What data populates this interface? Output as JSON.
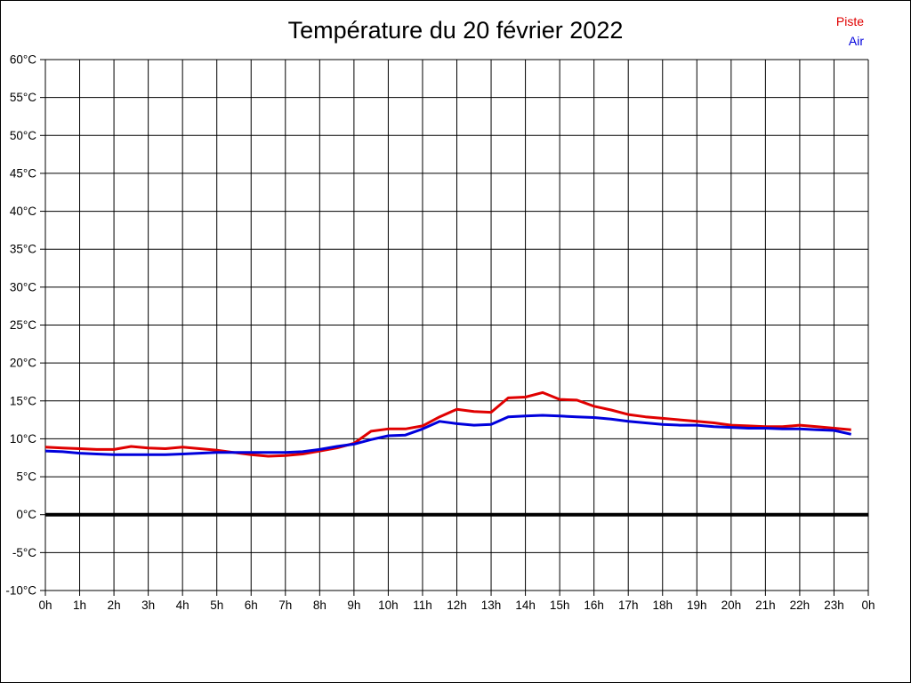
{
  "title": "Température du 20 février 2022",
  "legend": {
    "items": [
      {
        "label": "Piste",
        "color": "#e00000"
      },
      {
        "label": "Air",
        "color": "#0000dc"
      }
    ]
  },
  "chart_data": {
    "type": "line",
    "title": "Température du 20 février 2022",
    "xlabel": "",
    "ylabel": "",
    "ylim": [
      -10,
      60
    ],
    "y_tick_step": 5,
    "y_tick_suffix": "°C",
    "xlim_hours": [
      0,
      24
    ],
    "x_tick_hours": [
      0,
      1,
      2,
      3,
      4,
      5,
      6,
      7,
      8,
      9,
      10,
      11,
      12,
      13,
      14,
      15,
      16,
      17,
      18,
      19,
      20,
      21,
      22,
      23,
      24
    ],
    "x_tick_labels": [
      "0h",
      "1h",
      "2h",
      "3h",
      "4h",
      "5h",
      "6h",
      "7h",
      "8h",
      "9h",
      "10h",
      "11h",
      "12h",
      "13h",
      "14h",
      "15h",
      "16h",
      "17h",
      "18h",
      "19h",
      "20h",
      "21h",
      "22h",
      "23h",
      "0h"
    ],
    "grid": true,
    "zero_line": {
      "value": 0,
      "color": "#000000",
      "width": 4
    },
    "legend_position": "top-right",
    "x": [
      0,
      0.5,
      1,
      1.5,
      2,
      2.5,
      3,
      3.5,
      4,
      4.5,
      5,
      5.5,
      6,
      6.5,
      7,
      7.5,
      8,
      8.5,
      9,
      9.5,
      10,
      10.5,
      11,
      11.5,
      12,
      12.5,
      13,
      13.5,
      14,
      14.5,
      15,
      15.5,
      16,
      16.5,
      17,
      17.5,
      18,
      18.5,
      19,
      19.5,
      20,
      20.5,
      21,
      21.5,
      22,
      22.5,
      23,
      23.5
    ],
    "series": [
      {
        "name": "Piste",
        "color": "#e00000",
        "values": [
          8.9,
          8.8,
          8.7,
          8.6,
          8.6,
          9.0,
          8.8,
          8.7,
          8.9,
          8.7,
          8.5,
          8.2,
          7.9,
          7.7,
          7.8,
          8.0,
          8.4,
          8.8,
          9.4,
          11.0,
          11.3,
          11.3,
          11.7,
          12.9,
          13.9,
          13.6,
          13.5,
          15.4,
          15.5,
          16.1,
          15.2,
          15.1,
          14.3,
          13.8,
          13.2,
          12.9,
          12.7,
          12.5,
          12.3,
          12.1,
          11.8,
          11.7,
          11.6,
          11.6,
          11.8,
          11.6,
          11.4,
          11.2
        ]
      },
      {
        "name": "Air",
        "color": "#0000dc",
        "values": [
          8.4,
          8.3,
          8.1,
          8.0,
          7.9,
          7.9,
          7.9,
          7.9,
          8.0,
          8.1,
          8.2,
          8.2,
          8.2,
          8.2,
          8.2,
          8.3,
          8.6,
          9.0,
          9.3,
          9.9,
          10.4,
          10.5,
          11.3,
          12.3,
          12.0,
          11.8,
          11.9,
          12.9,
          13.0,
          13.1,
          13.0,
          12.9,
          12.8,
          12.6,
          12.3,
          12.1,
          11.9,
          11.8,
          11.8,
          11.6,
          11.5,
          11.4,
          11.4,
          11.3,
          11.3,
          11.2,
          11.1,
          10.6
        ]
      }
    ]
  }
}
